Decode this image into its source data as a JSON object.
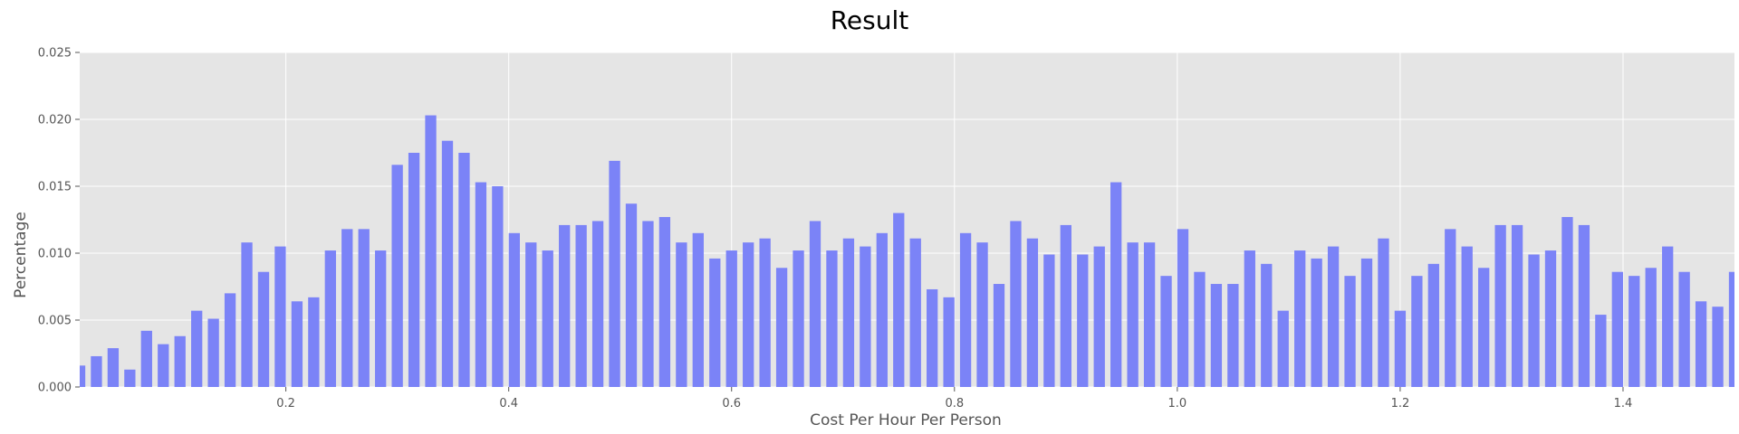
{
  "chart_data": {
    "type": "bar",
    "title": "Result",
    "xlabel": "Cost Per Hour Per Person",
    "ylabel": "Percentage",
    "xlim": [
      0.015,
      1.5
    ],
    "ylim": [
      0,
      0.025
    ],
    "xticks": [
      0.2,
      0.4,
      0.6,
      0.8,
      1.0,
      1.2,
      1.4
    ],
    "xtick_labels": [
      "0.2",
      "0.4",
      "0.6",
      "0.8",
      "1.0",
      "1.2",
      "1.4"
    ],
    "yticks": [
      0,
      0.005,
      0.01,
      0.015,
      0.02,
      0.025
    ],
    "ytick_labels": [
      "0.000",
      "0.005",
      "0.010",
      "0.015",
      "0.020",
      "0.025"
    ],
    "bar_width": 0.01,
    "grid": true,
    "style": "ggplot",
    "bar_color": "#7b83f7",
    "plot_background": "#e5e5e5",
    "grid_color": "#ffffff",
    "x": [
      0.015,
      0.03,
      0.045,
      0.06,
      0.075,
      0.09,
      0.105,
      0.12,
      0.135,
      0.15,
      0.165,
      0.18,
      0.195,
      0.21,
      0.225,
      0.24,
      0.255,
      0.27,
      0.285,
      0.3,
      0.315,
      0.33,
      0.345,
      0.36,
      0.375,
      0.39,
      0.405,
      0.42,
      0.435,
      0.45,
      0.465,
      0.48,
      0.495,
      0.51,
      0.525,
      0.54,
      0.555,
      0.57,
      0.585,
      0.6,
      0.615,
      0.63,
      0.645,
      0.66,
      0.675,
      0.69,
      0.705,
      0.72,
      0.735,
      0.75,
      0.765,
      0.78,
      0.795,
      0.81,
      0.825,
      0.84,
      0.855,
      0.87,
      0.885,
      0.9,
      0.915,
      0.93,
      0.945,
      0.96,
      0.975,
      0.99,
      1.005,
      1.02,
      1.035,
      1.05,
      1.065,
      1.08,
      1.095,
      1.11,
      1.125,
      1.14,
      1.155,
      1.17,
      1.185,
      1.2,
      1.215,
      1.23,
      1.245,
      1.26,
      1.275,
      1.29,
      1.305,
      1.32,
      1.335,
      1.35,
      1.365,
      1.38,
      1.395,
      1.41,
      1.425,
      1.44,
      1.455,
      1.47,
      1.485,
      1.5
    ],
    "values": [
      0.0016,
      0.0023,
      0.0029,
      0.0013,
      0.0042,
      0.0032,
      0.0038,
      0.0057,
      0.0051,
      0.007,
      0.0108,
      0.0086,
      0.0105,
      0.0064,
      0.0067,
      0.0102,
      0.0118,
      0.0118,
      0.0102,
      0.0166,
      0.0175,
      0.0203,
      0.0184,
      0.0175,
      0.0153,
      0.015,
      0.0115,
      0.0108,
      0.0102,
      0.0121,
      0.0121,
      0.0124,
      0.0169,
      0.0137,
      0.0124,
      0.0127,
      0.0108,
      0.0115,
      0.0096,
      0.0102,
      0.0108,
      0.0111,
      0.0089,
      0.0102,
      0.0124,
      0.0102,
      0.0111,
      0.0105,
      0.0115,
      0.013,
      0.0111,
      0.0073,
      0.0067,
      0.0115,
      0.0108,
      0.0077,
      0.0124,
      0.0111,
      0.0099,
      0.0121,
      0.0099,
      0.0105,
      0.0153,
      0.0108,
      0.0108,
      0.0083,
      0.0118,
      0.0086,
      0.0077,
      0.0077,
      0.0102,
      0.0092,
      0.0057,
      0.0102,
      0.0096,
      0.0105,
      0.0083,
      0.0096,
      0.0111,
      0.0057,
      0.0083,
      0.0092,
      0.0118,
      0.0105,
      0.0089,
      0.0121,
      0.0121,
      0.0099,
      0.0102,
      0.0127,
      0.0121,
      0.0054,
      0.0086,
      0.0083,
      0.0089,
      0.0105,
      0.0086,
      0.0064,
      0.006,
      0.0086
    ]
  }
}
